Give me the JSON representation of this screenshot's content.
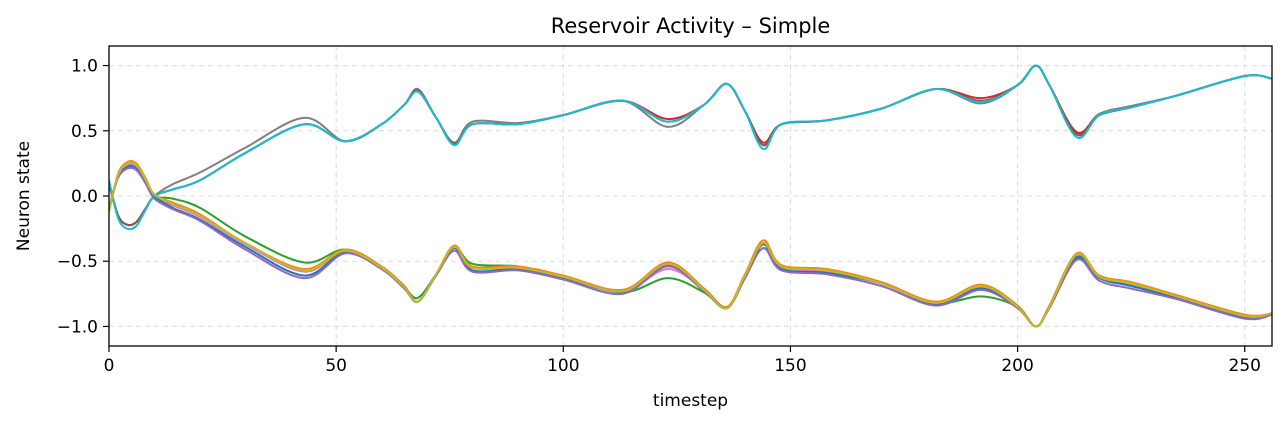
{
  "chart_data": {
    "type": "line",
    "title": "Reservoir Activity – Simple",
    "xlabel": "timestep",
    "ylabel": "Neuron state",
    "xlim": [
      0,
      256
    ],
    "ylim": [
      -1.15,
      1.15
    ],
    "xticks": [
      0,
      50,
      100,
      150,
      200,
      250
    ],
    "yticks": [
      -1.0,
      -0.5,
      0.0,
      0.5,
      1.0
    ],
    "ytick_labels": [
      "−1.0",
      "−0.5",
      "0.0",
      "0.5",
      "1.0"
    ],
    "grid": true,
    "upper_group": {
      "x": [
        0,
        2,
        4,
        6,
        8,
        10,
        14,
        20,
        30,
        43,
        52,
        60,
        65,
        68,
        72,
        76,
        80,
        90,
        100,
        113,
        123,
        131,
        136,
        140,
        144,
        148,
        158,
        170,
        182,
        192,
        200,
        204,
        207,
        213,
        218,
        225,
        235,
        250,
        256
      ],
      "y": [
        0.1,
        -0.15,
        -0.22,
        -0.2,
        -0.1,
        0.0,
        0.05,
        0.12,
        0.33,
        0.55,
        0.42,
        0.55,
        0.7,
        0.8,
        0.6,
        0.4,
        0.55,
        0.55,
        0.62,
        0.73,
        0.57,
        0.7,
        0.86,
        0.65,
        0.38,
        0.55,
        0.58,
        0.67,
        0.82,
        0.72,
        0.85,
        1.0,
        0.85,
        0.47,
        0.62,
        0.68,
        0.77,
        0.92,
        0.9
      ]
    },
    "lower_group": {
      "x": [
        0,
        2,
        4,
        6,
        8,
        10,
        14,
        20,
        30,
        43,
        52,
        60,
        65,
        68,
        72,
        76,
        80,
        90,
        100,
        113,
        123,
        131,
        136,
        140,
        144,
        148,
        158,
        170,
        182,
        192,
        200,
        204,
        207,
        213,
        218,
        225,
        235,
        250,
        256
      ],
      "y": [
        -0.1,
        0.15,
        0.23,
        0.22,
        0.12,
        0.0,
        -0.07,
        -0.16,
        -0.37,
        -0.58,
        -0.42,
        -0.55,
        -0.7,
        -0.81,
        -0.6,
        -0.4,
        -0.55,
        -0.55,
        -0.62,
        -0.73,
        -0.53,
        -0.72,
        -0.86,
        -0.62,
        -0.37,
        -0.55,
        -0.58,
        -0.67,
        -0.82,
        -0.7,
        -0.85,
        -1.0,
        -0.85,
        -0.46,
        -0.62,
        -0.68,
        -0.77,
        -0.92,
        -0.9
      ]
    },
    "series": [
      {
        "group": "upper",
        "color": "#7f7f7f",
        "offsets": [
          0,
          0,
          0,
          0,
          0,
          0,
          0.04,
          0.06,
          0.04,
          0.05,
          0,
          0,
          0,
          0.02,
          0,
          0.01,
          0.02,
          0.01,
          0,
          0,
          -0.04,
          0,
          0,
          0,
          0.01,
          0,
          0,
          0,
          0,
          -0.01,
          0,
          0,
          0,
          0.01,
          0.01,
          0.01,
          0,
          0,
          0
        ]
      },
      {
        "group": "upper",
        "color": "#d62728",
        "offsets": [
          0,
          0,
          0,
          0,
          0,
          0,
          0,
          0,
          0,
          0,
          0,
          0,
          0,
          0,
          0,
          0,
          0,
          0,
          0,
          0,
          0.02,
          0,
          0,
          0,
          0.03,
          0,
          0,
          0,
          0,
          0.03,
          0,
          0,
          0,
          0.02,
          0,
          0,
          0,
          0,
          0
        ]
      },
      {
        "group": "upper",
        "color": "#8c564b",
        "offsets": [
          0,
          0,
          0,
          0,
          0,
          0,
          0,
          0,
          0,
          0,
          0,
          0,
          0,
          0.01,
          0,
          0,
          0,
          0,
          0,
          0,
          0,
          0,
          0,
          0,
          0.01,
          0,
          0,
          0,
          0,
          0.01,
          0,
          0,
          0,
          0,
          0,
          0,
          0,
          0,
          0
        ]
      },
      {
        "group": "upper",
        "color": "#17becf",
        "offsets": [
          0.02,
          -0.02,
          -0.03,
          -0.03,
          -0.01,
          0,
          0,
          0,
          0,
          0,
          0,
          0,
          0,
          0,
          0,
          -0.01,
          0,
          0,
          0,
          0,
          0,
          0,
          0,
          0,
          -0.02,
          0,
          0,
          0,
          0,
          0,
          0,
          0,
          0,
          -0.02,
          0,
          0,
          0,
          0,
          0
        ]
      },
      {
        "group": "lower",
        "color": "#2ca02c",
        "offsets": [
          0,
          0,
          0,
          0,
          0,
          0,
          0.05,
          0.07,
          0.06,
          0.07,
          0.01,
          0,
          0,
          0.03,
          0,
          0.01,
          0.03,
          0.01,
          0,
          -0.01,
          -0.1,
          -0.02,
          0,
          0,
          -0.03,
          0,
          0,
          0,
          0,
          -0.07,
          0,
          0,
          0,
          -0.02,
          0,
          0,
          0,
          0,
          0
        ]
      },
      {
        "group": "lower",
        "color": "#ff7f0e",
        "offsets": [
          -0.02,
          0.02,
          0.03,
          0.03,
          0.02,
          0.01,
          0.02,
          0.02,
          0.01,
          0.02,
          0.01,
          0.01,
          0.01,
          0,
          0,
          0.02,
          0.01,
          0.01,
          0.01,
          0.01,
          0.02,
          0.01,
          0.01,
          0.02,
          0.03,
          0.02,
          0.02,
          0.01,
          0.01,
          0.02,
          0.01,
          0,
          0.01,
          0.02,
          0.01,
          0.02,
          0.01,
          0.01,
          0
        ]
      },
      {
        "group": "lower",
        "color": "#e377c2",
        "offsets": [
          0,
          0,
          0.01,
          0.01,
          0.01,
          0,
          0,
          0,
          0,
          0,
          0,
          0,
          0,
          0,
          0,
          0,
          0,
          0,
          0,
          0,
          -0.03,
          0,
          0,
          0,
          0,
          0,
          0,
          0,
          0,
          0,
          0,
          0,
          0,
          0,
          0,
          0,
          0,
          0,
          0
        ]
      },
      {
        "group": "lower",
        "color": "#1f77b4",
        "offsets": [
          0,
          0,
          -0.01,
          -0.01,
          -0.01,
          0,
          -0.02,
          -0.02,
          -0.02,
          -0.03,
          -0.01,
          -0.01,
          0,
          0,
          0,
          0,
          -0.02,
          -0.01,
          -0.01,
          0,
          0,
          0,
          0,
          0,
          0,
          -0.01,
          -0.01,
          0,
          -0.01,
          -0.01,
          0,
          0,
          0,
          -0.01,
          -0.01,
          -0.01,
          -0.01,
          -0.01,
          0
        ]
      },
      {
        "group": "lower",
        "color": "#9467bd",
        "offsets": [
          0.01,
          -0.01,
          -0.02,
          -0.02,
          -0.02,
          -0.02,
          -0.03,
          -0.03,
          -0.04,
          -0.05,
          -0.02,
          -0.01,
          -0.01,
          0,
          -0.01,
          -0.02,
          -0.03,
          -0.02,
          -0.02,
          -0.02,
          -0.01,
          -0.01,
          0,
          -0.01,
          -0.03,
          -0.02,
          -0.02,
          -0.02,
          -0.02,
          -0.02,
          -0.01,
          0,
          -0.01,
          -0.03,
          -0.03,
          -0.03,
          -0.02,
          -0.02,
          -0.01
        ]
      },
      {
        "group": "lower",
        "color": "#bcbd22",
        "offsets": [
          -0.01,
          0.01,
          0.02,
          0.02,
          0.01,
          0.01,
          0.01,
          0.01,
          0.01,
          0.01,
          0,
          0,
          0,
          0,
          0,
          0.01,
          0,
          0,
          0,
          0,
          0.01,
          0,
          0,
          0.01,
          0.01,
          0.01,
          0.01,
          0,
          0,
          0.01,
          0,
          0,
          0,
          0.01,
          0,
          0.01,
          0,
          0,
          0
        ]
      }
    ]
  }
}
